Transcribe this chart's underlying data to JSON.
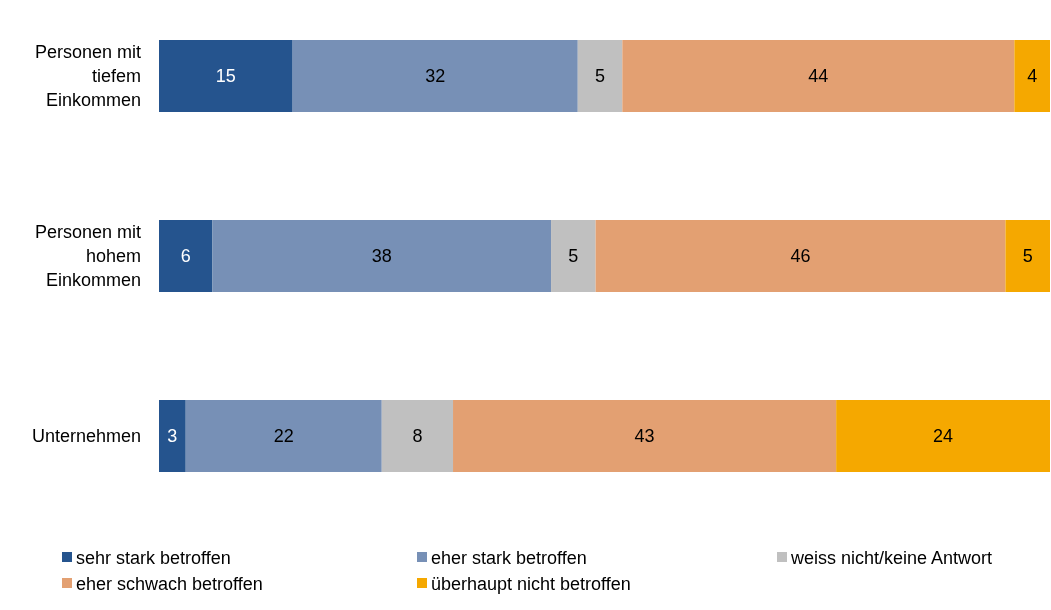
{
  "chart_data": {
    "type": "bar",
    "orientation": "horizontal",
    "stacked": true,
    "data_labels": true,
    "legend": "bottom",
    "tick_labels": "y",
    "xlim": [
      0,
      100
    ],
    "categories": [
      "Personen mit tiefem Einkommen",
      "Personen mit hohem Einkommen",
      "Unternehmen"
    ],
    "series": [
      {
        "name": "sehr stark betroffen",
        "color": "#25548e",
        "values": [
          15,
          6,
          3
        ]
      },
      {
        "name": "eher stark betroffen",
        "color": "#7790b6",
        "values": [
          32,
          38,
          22
        ]
      },
      {
        "name": "weiss nicht/keine Antwort",
        "color": "#c0c0c0",
        "values": [
          5,
          5,
          8
        ]
      },
      {
        "name": "eher schwach betroffen",
        "color": "#e3a072",
        "values": [
          44,
          46,
          43
        ]
      },
      {
        "name": "überhaupt nicht betroffen",
        "color": "#f5a800",
        "values": [
          4,
          5,
          24
        ]
      }
    ]
  }
}
